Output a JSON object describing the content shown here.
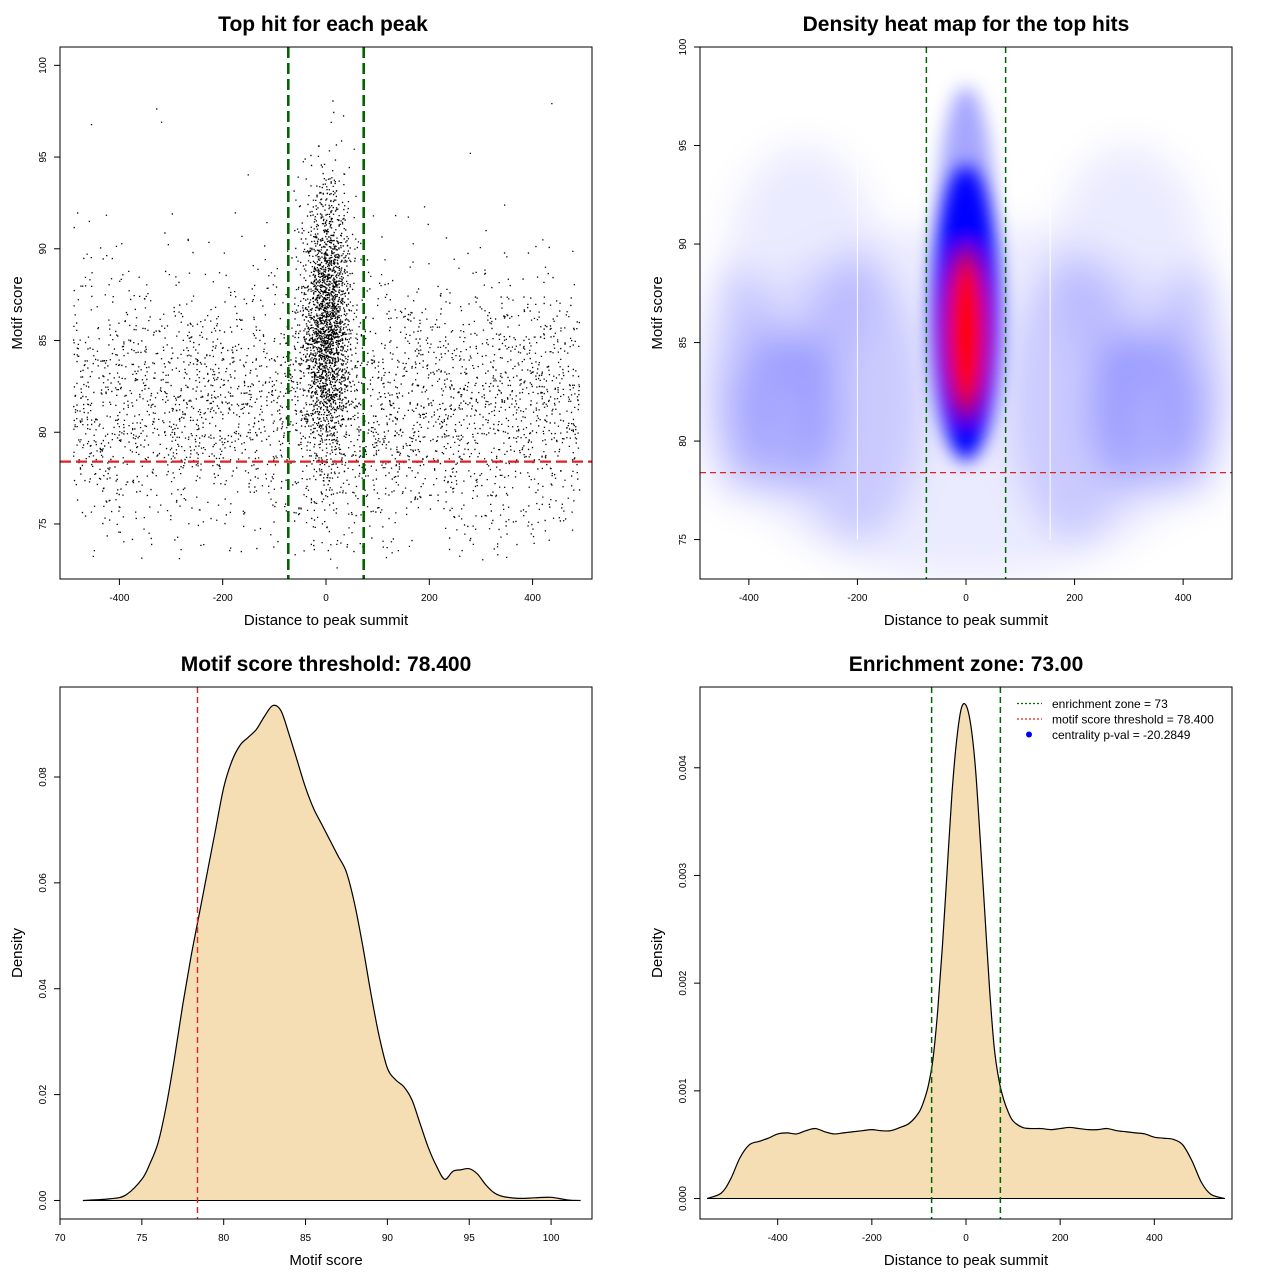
{
  "chart_data": [
    {
      "type": "scatter",
      "title": "Top hit for each peak",
      "xlabel": "Distance to peak summit",
      "ylabel": "Motif score",
      "xlim": [
        -515,
        515
      ],
      "ylim": [
        72,
        101
      ],
      "xticks": [
        -400,
        -200,
        0,
        200,
        400
      ],
      "yticks": [
        75,
        80,
        85,
        90,
        95,
        100
      ],
      "threshold": 78.4,
      "zone_lines": [
        -73,
        73
      ],
      "background_points": {
        "x_range": [
          -490,
          490
        ],
        "y_range": [
          73,
          99
        ],
        "dense_mode_y": 81.5,
        "count": 3400
      },
      "central_cluster": {
        "x_center": 0,
        "x_sd": 22,
        "y_center": 86,
        "y_sd": 3.7,
        "count": 2200
      },
      "threshold_color": "#dd2222",
      "zone_color": "#006400"
    },
    {
      "type": "heatmap",
      "title": "Density heat map for the top hits",
      "xlabel": "Distance to peak summit",
      "ylabel": "Motif score",
      "xlim": [
        -490,
        490
      ],
      "ylim": [
        73,
        100
      ],
      "xticks": [
        -400,
        -200,
        0,
        200,
        400
      ],
      "yticks": [
        75,
        80,
        85,
        90,
        95,
        100
      ],
      "threshold": 78.4,
      "zone_lines": [
        -73,
        73
      ],
      "hotspot": {
        "x": 0,
        "y": 85.5
      },
      "low_color": "#ffffff",
      "mid_color": "#0000ff",
      "high_color": "#ff0000",
      "threshold_color": "#dd2222",
      "zone_color": "#006400"
    },
    {
      "type": "area",
      "title": "Motif score threshold: 78.400",
      "xlabel": "Motif score",
      "ylabel": "Density",
      "xlim": [
        70,
        102.5
      ],
      "ylim": [
        -0.0035,
        0.097
      ],
      "xticks": [
        70,
        75,
        80,
        85,
        90,
        95,
        100
      ],
      "yticks": [
        0.0,
        0.02,
        0.04,
        0.06,
        0.08
      ],
      "ytick_labels": [
        "0.00",
        "0.02",
        "0.04",
        "0.06",
        "0.08"
      ],
      "threshold": 78.4,
      "x": [
        71.4,
        73,
        74,
        75,
        75.5,
        76,
        76.5,
        77,
        77.5,
        78,
        78.5,
        79,
        79.5,
        80,
        80.5,
        81,
        81.5,
        82,
        82.5,
        83,
        83.5,
        84,
        84.5,
        85,
        85.5,
        86,
        86.5,
        87,
        87.5,
        88,
        88.5,
        89,
        89.5,
        90,
        90.5,
        91,
        91.5,
        92,
        92.5,
        93,
        93.5,
        94,
        94.5,
        95,
        95.5,
        96,
        96.5,
        97,
        98,
        99,
        100,
        101,
        101.8
      ],
      "y": [
        0.0,
        0.0003,
        0.001,
        0.004,
        0.007,
        0.011,
        0.018,
        0.027,
        0.037,
        0.046,
        0.054,
        0.062,
        0.07,
        0.078,
        0.083,
        0.086,
        0.0875,
        0.089,
        0.0915,
        0.0935,
        0.0925,
        0.088,
        0.083,
        0.078,
        0.074,
        0.071,
        0.068,
        0.065,
        0.062,
        0.056,
        0.048,
        0.039,
        0.031,
        0.025,
        0.0228,
        0.0215,
        0.019,
        0.0145,
        0.01,
        0.0065,
        0.004,
        0.0055,
        0.0058,
        0.006,
        0.005,
        0.003,
        0.0015,
        0.0008,
        0.0004,
        0.0005,
        0.0006,
        0.0001,
        0.0
      ],
      "fill_color": "#f5deb3",
      "threshold_color": "#dd2222"
    },
    {
      "type": "area",
      "title": "Enrichment zone: 73.00",
      "xlabel": "Distance to peak summit",
      "ylabel": "Density",
      "xlim": [
        -565,
        565
      ],
      "ylim": [
        -0.00019,
        0.00475
      ],
      "xticks": [
        -400,
        -200,
        0,
        200,
        400
      ],
      "yticks": [
        0.0,
        0.001,
        0.002,
        0.003,
        0.004
      ],
      "ytick_labels": [
        "0.000",
        "0.001",
        "0.002",
        "0.003",
        "0.004"
      ],
      "zone_lines": [
        -73,
        73
      ],
      "x": [
        -550,
        -520,
        -500,
        -480,
        -460,
        -440,
        -420,
        -400,
        -380,
        -360,
        -340,
        -320,
        -300,
        -280,
        -260,
        -240,
        -220,
        -200,
        -180,
        -160,
        -140,
        -120,
        -100,
        -90,
        -80,
        -70,
        -60,
        -50,
        -40,
        -30,
        -20,
        -10,
        0,
        10,
        20,
        30,
        40,
        50,
        60,
        70,
        80,
        90,
        100,
        120,
        140,
        160,
        180,
        200,
        220,
        240,
        260,
        280,
        300,
        320,
        340,
        360,
        380,
        400,
        420,
        440,
        460,
        480,
        500,
        520,
        550
      ],
      "y": [
        0.0,
        5e-05,
        0.00018,
        0.00038,
        0.0005,
        0.00053,
        0.00056,
        0.0006,
        0.00061,
        0.0006,
        0.00063,
        0.00065,
        0.00062,
        0.0006,
        0.00061,
        0.00062,
        0.00063,
        0.00064,
        0.00063,
        0.00063,
        0.00066,
        0.0007,
        0.0008,
        0.0009,
        0.00105,
        0.0013,
        0.00175,
        0.00235,
        0.00305,
        0.00375,
        0.00425,
        0.00455,
        0.00458,
        0.0044,
        0.004,
        0.00335,
        0.00265,
        0.00195,
        0.0014,
        0.0011,
        0.00092,
        0.0008,
        0.00072,
        0.00066,
        0.00065,
        0.00065,
        0.00064,
        0.00065,
        0.00066,
        0.00065,
        0.00064,
        0.00064,
        0.00065,
        0.00063,
        0.00062,
        0.00061,
        0.0006,
        0.00057,
        0.00056,
        0.00055,
        0.0005,
        0.00035,
        0.00015,
        4e-05,
        0.0
      ],
      "fill_color": "#f5deb3",
      "zone_color": "#006400",
      "legend": [
        {
          "label": "enrichment zone = 73",
          "style": "dotted-line",
          "color": "#006400"
        },
        {
          "label": "motif score threshold = 78.400",
          "style": "dotted-line",
          "color": "#dd2222"
        },
        {
          "label": "centrality p-val = -20.2849",
          "style": "point",
          "color": "#0000ff"
        }
      ]
    }
  ]
}
